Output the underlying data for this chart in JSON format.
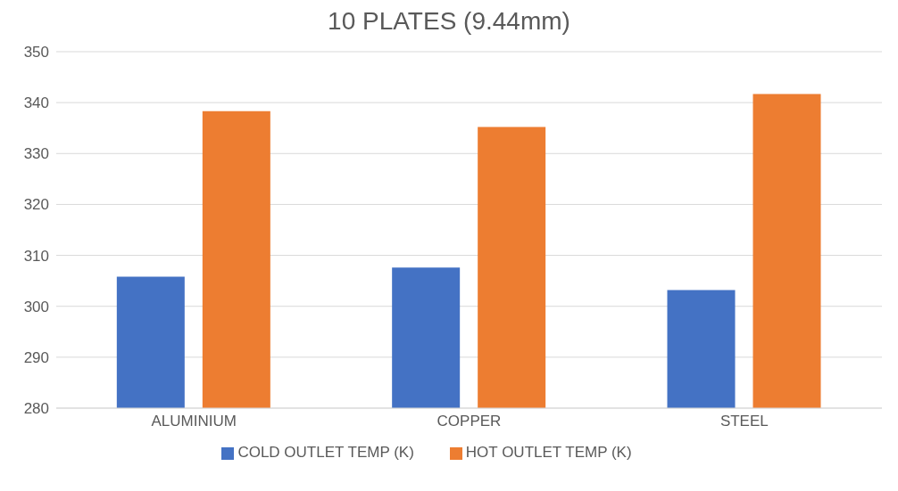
{
  "chart_data": {
    "type": "bar",
    "title": "10 PLATES (9.44mm)",
    "categories": [
      "ALUMINIUM",
      "COPPER",
      "STEEL"
    ],
    "series": [
      {
        "name": "COLD OUTLET TEMP (K)",
        "color": "#4472c4",
        "values": [
          305.8,
          307.6,
          303.2
        ]
      },
      {
        "name": "HOT OUTLET TEMP (K)",
        "color": "#ed7d31",
        "values": [
          338.3,
          335.2,
          341.7
        ]
      }
    ],
    "ylim": [
      280,
      350
    ],
    "yticks": [
      280,
      290,
      300,
      310,
      320,
      330,
      340,
      350
    ],
    "grid": "y",
    "legend": "bottom"
  }
}
